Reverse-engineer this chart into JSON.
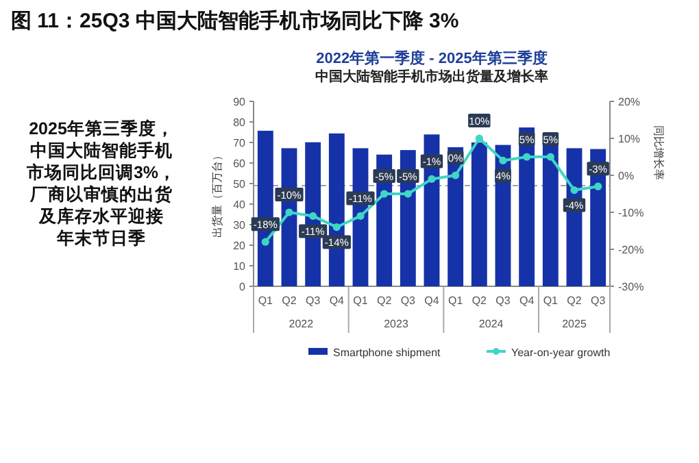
{
  "chart_data": {
    "type": "bar",
    "title": "图 11：25Q3 中国大陆智能手机市场同比下降 3%",
    "subtitle": "2022年第一季度 - 2025年第三季度",
    "ylabel": "出货量（百万台）",
    "y2label": "同比增长率",
    "categories": [
      "Q1",
      "Q2",
      "Q3",
      "Q4",
      "Q1",
      "Q2",
      "Q3",
      "Q4",
      "Q1",
      "Q2",
      "Q3",
      "Q4",
      "Q1",
      "Q2",
      "Q3"
    ],
    "series": [
      {
        "name": "Smartphone shipment",
        "color": "#1632a8",
        "values": [
          75.7,
          67.2,
          70.1,
          74.4,
          67.2,
          64.1,
          66.3,
          73.9,
          67.7,
          70,
          68.8,
          77.3,
          71.2,
          67.2,
          66.8
        ]
      },
      {
        "name": "Year-on-year growth",
        "type": "line",
        "axis": "y2",
        "color": "#3fd6c6",
        "marker": "circle",
        "values": [
          -18,
          -10,
          -11,
          -14,
          -11,
          -5,
          -5,
          -1,
          0,
          10,
          4,
          5,
          5,
          -4,
          -3
        ],
        "value_labels": [
          "-18%",
          "-10%",
          "-11%",
          "-14%",
          "-11%",
          "-5%",
          "-5%",
          "-1%",
          "0%",
          "10%",
          "4%",
          "5%",
          "5%",
          "-4%",
          "-3%"
        ]
      }
    ],
    "ylim": [
      0,
      90
    ],
    "yticks": [
      0,
      10,
      20,
      30,
      40,
      50,
      60,
      70,
      80,
      90
    ],
    "y2lim": [
      -30,
      20
    ],
    "y2ticks": [
      {
        "value": -30,
        "label": "-30%"
      },
      {
        "value": -20,
        "label": "-20%"
      },
      {
        "value": -10,
        "label": "-10%"
      },
      {
        "value": 0,
        "label": "0%"
      },
      {
        "value": 10,
        "label": "10%"
      },
      {
        "value": 20,
        "label": "20%"
      }
    ],
    "ref_lines": [
      {
        "axis": "y",
        "value": 49,
        "color": "#9aa3b5",
        "line_style": "dashed"
      }
    ],
    "legend": "bottom",
    "grid": false,
    "annotations": [
      "中国大陆智能手机市场出货量及增长率",
      "2025年第三季度，",
      "中国大陆智能手机",
      "市场同比回调3%，",
      "厂商以审慎的出货",
      "及库存水平迎接",
      "年末节日季",
      "2022",
      "2023",
      "2024",
      "2025"
    ]
  }
}
